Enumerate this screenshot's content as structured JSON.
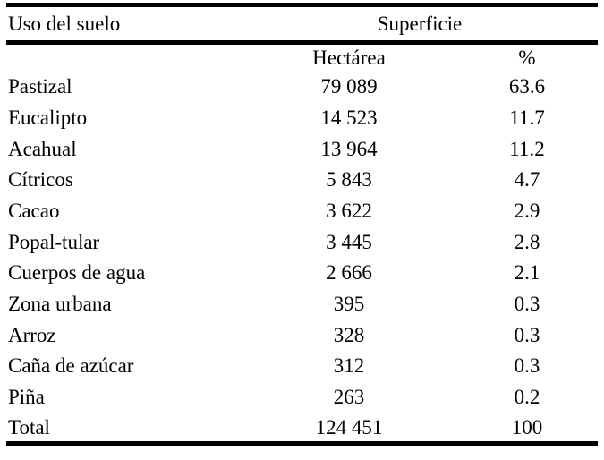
{
  "table": {
    "col1_header": "Uso del suelo",
    "group_header": "Superficie",
    "subheaders": {
      "hectarea": "Hectárea",
      "percent": "%"
    },
    "rows": [
      {
        "label": "Pastizal",
        "hectarea": "79 089",
        "percent": "63.6"
      },
      {
        "label": "Eucalipto",
        "hectarea": "14 523",
        "percent": "11.7"
      },
      {
        "label": "Acahual",
        "hectarea": "13 964",
        "percent": "11.2"
      },
      {
        "label": "Cítricos",
        "hectarea": "5 843",
        "percent": "4.7"
      },
      {
        "label": "Cacao",
        "hectarea": "3 622",
        "percent": "2.9"
      },
      {
        "label": "Popal-tular",
        "hectarea": "3 445",
        "percent": "2.8"
      },
      {
        "label": "Cuerpos de agua",
        "hectarea": "2 666",
        "percent": "2.1"
      },
      {
        "label": "Zona urbana",
        "hectarea": "395",
        "percent": "0.3"
      },
      {
        "label": "Arroz",
        "hectarea": "328",
        "percent": "0.3"
      },
      {
        "label": "Caña de azúcar",
        "hectarea": "312",
        "percent": "0.3"
      },
      {
        "label": "Piña",
        "hectarea": "263",
        "percent": "0.2"
      },
      {
        "label": "Total",
        "hectarea": "124 451",
        "percent": "100"
      }
    ],
    "colors": {
      "text": "#000000",
      "rule": "#000000",
      "background": "#ffffff"
    }
  },
  "chart_data": {
    "type": "table",
    "title": "",
    "columns": [
      "Uso del suelo",
      "Superficie Hectárea",
      "Superficie %"
    ],
    "categories": [
      "Pastizal",
      "Eucalipto",
      "Acahual",
      "Cítricos",
      "Cacao",
      "Popal-tular",
      "Cuerpos de agua",
      "Zona urbana",
      "Arroz",
      "Caña de azúcar",
      "Piña",
      "Total"
    ],
    "series": [
      {
        "name": "Hectárea",
        "values": [
          79089,
          14523,
          13964,
          5843,
          3622,
          3445,
          2666,
          395,
          328,
          312,
          263,
          124451
        ]
      },
      {
        "name": "%",
        "values": [
          63.6,
          11.7,
          11.2,
          4.7,
          2.9,
          2.8,
          2.1,
          0.3,
          0.3,
          0.3,
          0.2,
          100
        ]
      }
    ]
  }
}
